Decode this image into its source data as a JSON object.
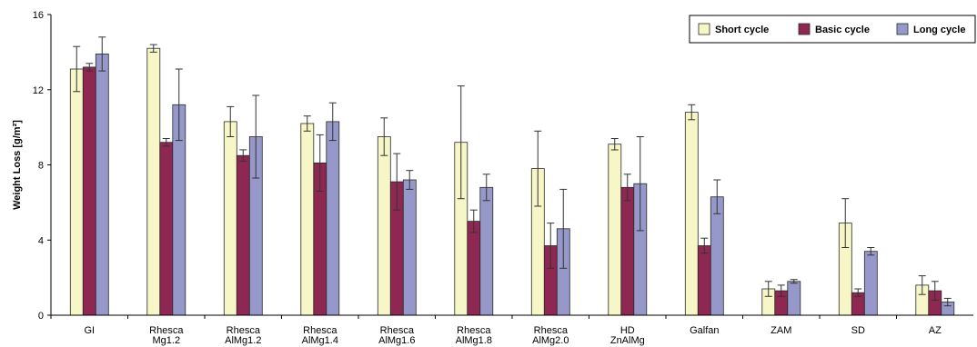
{
  "chart_data": {
    "type": "bar",
    "ylabel": "Weight Loss [g/m²]",
    "ylim": [
      0,
      16
    ],
    "yticks": [
      "0",
      "4",
      "8",
      "12",
      "16"
    ],
    "grid": false,
    "legend_position": "top-right",
    "categories": [
      [
        "GI"
      ],
      [
        "Rhesca",
        "Mg1.2"
      ],
      [
        "Rhesca",
        "AlMg1.2"
      ],
      [
        "Rhesca",
        "AlMg1.4"
      ],
      [
        "Rhesca",
        "AlMg1.6"
      ],
      [
        "Rhesca",
        "AlMg1.8"
      ],
      [
        "Rhesca",
        "AlMg2.0"
      ],
      [
        "HD",
        "ZnAlMg"
      ],
      [
        "Galfan"
      ],
      [
        "ZAM"
      ],
      [
        "SD"
      ],
      [
        "AZ"
      ]
    ],
    "series": [
      {
        "name": "Short cycle",
        "color": "#f7f6c6",
        "values": [
          13.1,
          14.2,
          10.3,
          10.2,
          9.5,
          9.2,
          7.8,
          9.1,
          10.8,
          1.4,
          4.9,
          1.6
        ],
        "error": [
          1.2,
          0.2,
          0.8,
          0.4,
          1.0,
          3.0,
          2.0,
          0.3,
          0.4,
          0.4,
          1.3,
          0.5
        ]
      },
      {
        "name": "Basic cycle",
        "color": "#8e2752",
        "values": [
          13.2,
          9.2,
          8.5,
          8.1,
          7.1,
          5.0,
          3.7,
          6.8,
          3.7,
          1.3,
          1.2,
          1.3
        ],
        "error": [
          0.2,
          0.2,
          0.3,
          1.5,
          1.5,
          0.6,
          1.2,
          0.7,
          0.4,
          0.3,
          0.2,
          0.5
        ]
      },
      {
        "name": "Long cycle",
        "color": "#9598c9",
        "values": [
          13.9,
          11.2,
          9.5,
          10.3,
          7.2,
          6.8,
          4.6,
          7.0,
          6.3,
          1.8,
          3.4,
          0.7
        ],
        "error": [
          0.9,
          1.9,
          2.2,
          1.0,
          0.5,
          0.7,
          2.1,
          2.5,
          0.9,
          0.1,
          0.2,
          0.2
        ]
      }
    ]
  }
}
